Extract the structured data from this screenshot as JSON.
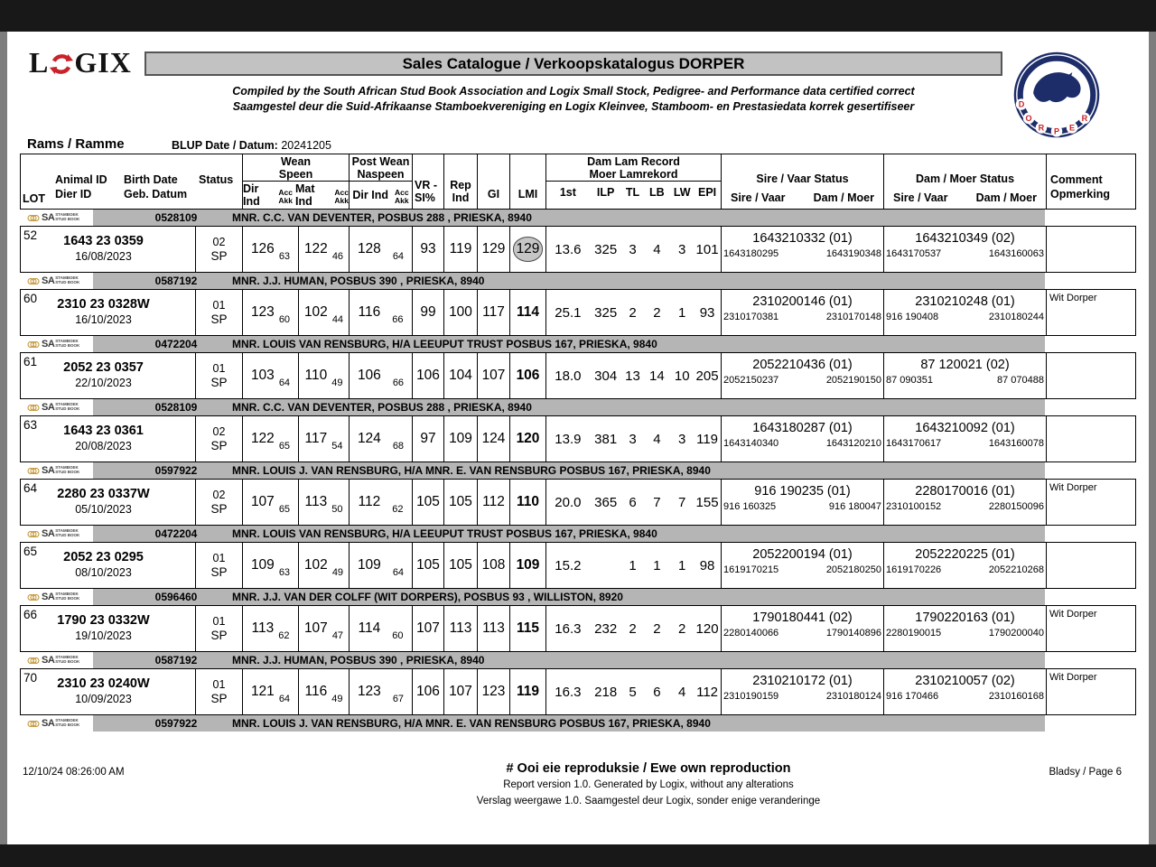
{
  "brand": {
    "red": "#c8232a",
    "blue": "#1d2d69",
    "bar_gray": "#b5b5b5"
  },
  "header": {
    "logo_left": "L",
    "logo_right": "GIX",
    "title": "Sales Catalogue / Verkoopskatalogus DORPER",
    "subtitle_en": "Compiled by the South African Stud Book Association and Logix Small Stock, Pedigree- and Performance data certified correct",
    "subtitle_af": "Saamgestel deur die Suid-Afrikaanse Stamboekvereniging en Logix Kleinvee, Stamboom- en Prestasiedata korrek gesertifiseer",
    "section": "Rams / Ramme",
    "blup_label": "BLUP Date / Datum:",
    "blup_value": "20241205",
    "dorper_letters": [
      "D",
      "O",
      "R",
      "P",
      "E",
      "R"
    ]
  },
  "sa_logo": {
    "sa": "SA",
    "line1": "STAMBOEK",
    "line2": "STUD BOOK"
  },
  "table": {
    "columns": {
      "lot": "LOT",
      "animal_id": "Animal ID",
      "dier_id": "Dier ID",
      "birth_date": "Birth Date",
      "geb_datum": "Geb. Datum",
      "status": "Status",
      "wean": "Wean",
      "speen": "Speen",
      "post_wean": "Post Wean",
      "naspeen": "Naspeen",
      "dir_ind": "Dir Ind",
      "mat_ind": "Mat Ind",
      "acc": "Acc",
      "akk": "Akk",
      "vr": "VR -",
      "si": "SI%",
      "rep": "Rep",
      "ind": "Ind",
      "gi": "GI",
      "lmi": "LMI",
      "dam_lam_record": "Dam Lam Record",
      "moer_lamrekord": "Moer Lamrekord",
      "first": "1st",
      "ilp": "ILP",
      "tl": "TL",
      "lb": "LB",
      "lw": "LW",
      "epi": "EPI",
      "sire_vaar_status": "Sire / Vaar Status",
      "dam_moer_status": "Dam / Moer Status",
      "sire_vaar": "Sire / Vaar",
      "dam_moer": "Dam / Moer",
      "comment": "Comment",
      "opmerking": "Opmerking"
    },
    "blocks": [
      {
        "breeder": {
          "id": "0528109",
          "name": "MNR. C.C. VAN DEVENTER, POSBUS 288 , PRIESKA, 8940"
        },
        "row": {
          "lot": "52",
          "animal_id": "1643 23 0359",
          "birth_date": "16/08/2023",
          "status_code": "02",
          "status": "SP",
          "wean_dir": "126",
          "wean_dir_acc": "63",
          "wean_mat": "122",
          "wean_mat_acc": "46",
          "post_dir": "128",
          "post_dir_acc": "64",
          "vr_si": "93",
          "rep_ind": "119",
          "gi": "129",
          "lmi": "129",
          "lmi_circled": true,
          "first": "13.6",
          "ilp": "325",
          "tl": "3",
          "lb": "4",
          "lw": "3",
          "epi": "101",
          "sire": {
            "main": "1643210332 (01)",
            "sire": "1643180295",
            "dam": "1643190348"
          },
          "dam": {
            "main": "1643210349 (02)",
            "sire": "1643170537",
            "dam": "1643160063"
          },
          "comment": ""
        }
      },
      {
        "breeder": {
          "id": "0587192",
          "name": "MNR. J.J. HUMAN, POSBUS 390 , PRIESKA, 8940"
        },
        "row": {
          "lot": "60",
          "animal_id": "2310 23 0328W",
          "birth_date": "16/10/2023",
          "status_code": "01",
          "status": "SP",
          "wean_dir": "123",
          "wean_dir_acc": "60",
          "wean_mat": "102",
          "wean_mat_acc": "44",
          "post_dir": "116",
          "post_dir_acc": "66",
          "vr_si": "99",
          "rep_ind": "100",
          "gi": "117",
          "lmi": "114",
          "lmi_circled": false,
          "first": "25.1",
          "ilp": "325",
          "tl": "2",
          "lb": "2",
          "lw": "1",
          "epi": "93",
          "sire": {
            "main": "2310200146 (01)",
            "sire": "2310170381",
            "dam": "2310170148"
          },
          "dam": {
            "main": "2310210248 (01)",
            "sire": "916 190408",
            "dam": "2310180244"
          },
          "comment": "Wit Dorper"
        }
      },
      {
        "breeder": {
          "id": "0472204",
          "name": "MNR.  LOUIS VAN RENSBURG, H/A LEEUPUT TRUST POSBUS 167, PRIESKA, 9840"
        },
        "row": {
          "lot": "61",
          "animal_id": "2052 23 0357",
          "birth_date": "22/10/2023",
          "status_code": "01",
          "status": "SP",
          "wean_dir": "103",
          "wean_dir_acc": "64",
          "wean_mat": "110",
          "wean_mat_acc": "49",
          "post_dir": "106",
          "post_dir_acc": "66",
          "vr_si": "106",
          "rep_ind": "104",
          "gi": "107",
          "lmi": "106",
          "lmi_circled": false,
          "first": "18.0",
          "ilp": "304",
          "tl": "13",
          "lb": "14",
          "lw": "10",
          "epi": "205",
          "sire": {
            "main": "2052210436 (01)",
            "sire": "2052150237",
            "dam": "2052190150"
          },
          "dam": {
            "main": "87  120021 (02)",
            "sire": "87 090351",
            "dam": "87 070488"
          },
          "comment": ""
        }
      },
      {
        "breeder": {
          "id": "0528109",
          "name": "MNR. C.C. VAN DEVENTER, POSBUS 288 , PRIESKA, 8940"
        },
        "row": {
          "lot": "63",
          "animal_id": "1643 23 0361",
          "birth_date": "20/08/2023",
          "status_code": "02",
          "status": "SP",
          "wean_dir": "122",
          "wean_dir_acc": "65",
          "wean_mat": "117",
          "wean_mat_acc": "54",
          "post_dir": "124",
          "post_dir_acc": "68",
          "vr_si": "97",
          "rep_ind": "109",
          "gi": "124",
          "lmi": "120",
          "lmi_circled": false,
          "first": "13.9",
          "ilp": "381",
          "tl": "3",
          "lb": "4",
          "lw": "3",
          "epi": "119",
          "sire": {
            "main": "1643180287 (01)",
            "sire": "1643140340",
            "dam": "1643120210"
          },
          "dam": {
            "main": "1643210092 (01)",
            "sire": "1643170617",
            "dam": "1643160078"
          },
          "comment": ""
        }
      },
      {
        "breeder": {
          "id": "0597922",
          "name": "MNR.  LOUIS J. VAN RENSBURG, H/A MNR. E. VAN RENSBURG POSBUS 167, PRIESKA, 8940"
        },
        "row": {
          "lot": "64",
          "animal_id": "2280 23 0337W",
          "birth_date": "05/10/2023",
          "status_code": "02",
          "status": "SP",
          "wean_dir": "107",
          "wean_dir_acc": "65",
          "wean_mat": "113",
          "wean_mat_acc": "50",
          "post_dir": "112",
          "post_dir_acc": "62",
          "vr_si": "105",
          "rep_ind": "105",
          "gi": "112",
          "lmi": "110",
          "lmi_circled": false,
          "first": "20.0",
          "ilp": "365",
          "tl": "6",
          "lb": "7",
          "lw": "7",
          "epi": "155",
          "sire": {
            "main": "916 190235 (01)",
            "sire": "916 160325",
            "dam": "916 180047"
          },
          "dam": {
            "main": "2280170016 (01)",
            "sire": "2310100152",
            "dam": "2280150096"
          },
          "comment": "Wit Dorper"
        }
      },
      {
        "breeder": {
          "id": "0472204",
          "name": "MNR.  LOUIS VAN RENSBURG, H/A LEEUPUT TRUST POSBUS 167, PRIESKA, 9840"
        },
        "row": {
          "lot": "65",
          "animal_id": "2052 23 0295",
          "birth_date": "08/10/2023",
          "status_code": "01",
          "status": "SP",
          "wean_dir": "109",
          "wean_dir_acc": "63",
          "wean_mat": "102",
          "wean_mat_acc": "49",
          "post_dir": "109",
          "post_dir_acc": "64",
          "vr_si": "105",
          "rep_ind": "105",
          "gi": "108",
          "lmi": "109",
          "lmi_circled": false,
          "first": "15.2",
          "ilp": "",
          "tl": "1",
          "lb": "1",
          "lw": "1",
          "epi": "98",
          "sire": {
            "main": "2052200194 (01)",
            "sire": "1619170215",
            "dam": "2052180250"
          },
          "dam": {
            "main": "2052220225 (01)",
            "sire": "1619170226",
            "dam": "2052210268"
          },
          "comment": ""
        }
      },
      {
        "breeder": {
          "id": "0596460",
          "name": "MNR. J.J. VAN DER COLFF (WIT DORPERS), POSBUS 93 , WILLISTON, 8920"
        },
        "row": {
          "lot": "66",
          "animal_id": "1790 23 0332W",
          "birth_date": "19/10/2023",
          "status_code": "01",
          "status": "SP",
          "wean_dir": "113",
          "wean_dir_acc": "62",
          "wean_mat": "107",
          "wean_mat_acc": "47",
          "post_dir": "114",
          "post_dir_acc": "60",
          "vr_si": "107",
          "rep_ind": "113",
          "gi": "113",
          "lmi": "115",
          "lmi_circled": false,
          "first": "16.3",
          "ilp": "232",
          "tl": "2",
          "lb": "2",
          "lw": "2",
          "epi": "120",
          "sire": {
            "main": "1790180441 (02)",
            "sire": "2280140066",
            "dam": "1790140896"
          },
          "dam": {
            "main": "1790220163 (01)",
            "sire": "2280190015",
            "dam": "1790200040"
          },
          "comment": "Wit Dorper"
        }
      },
      {
        "breeder": {
          "id": "0587192",
          "name": "MNR. J.J. HUMAN, POSBUS 390 , PRIESKA, 8940"
        },
        "row": {
          "lot": "70",
          "animal_id": "2310 23 0240W",
          "birth_date": "10/09/2023",
          "status_code": "01",
          "status": "SP",
          "wean_dir": "121",
          "wean_dir_acc": "64",
          "wean_mat": "116",
          "wean_mat_acc": "49",
          "post_dir": "123",
          "post_dir_acc": "67",
          "vr_si": "106",
          "rep_ind": "107",
          "gi": "123",
          "lmi": "119",
          "lmi_circled": false,
          "first": "16.3",
          "ilp": "218",
          "tl": "5",
          "lb": "6",
          "lw": "4",
          "epi": "112",
          "sire": {
            "main": "2310210172 (01)",
            "sire": "2310190159",
            "dam": "2310180124"
          },
          "dam": {
            "main": "2310210057 (02)",
            "sire": "916 170466",
            "dam": "2310160168"
          },
          "comment": "Wit Dorper"
        }
      }
    ],
    "final_breeder": {
      "id": "0597922",
      "name": "MNR.  LOUIS J. VAN RENSBURG, H/A MNR. E. VAN RENSBURG POSBUS 167, PRIESKA, 8940"
    }
  },
  "footer": {
    "timestamp": "12/10/24 08:26:00 AM",
    "title": "# Ooi eie reproduksie / Ewe own reproduction",
    "line1": "Report version  1.0. Generated by Logix, without any alterations",
    "line2": "Verslag weergawe 1.0. Saamgestel deur Logix, sonder enige veranderinge",
    "page": "Bladsy / Page 6"
  }
}
